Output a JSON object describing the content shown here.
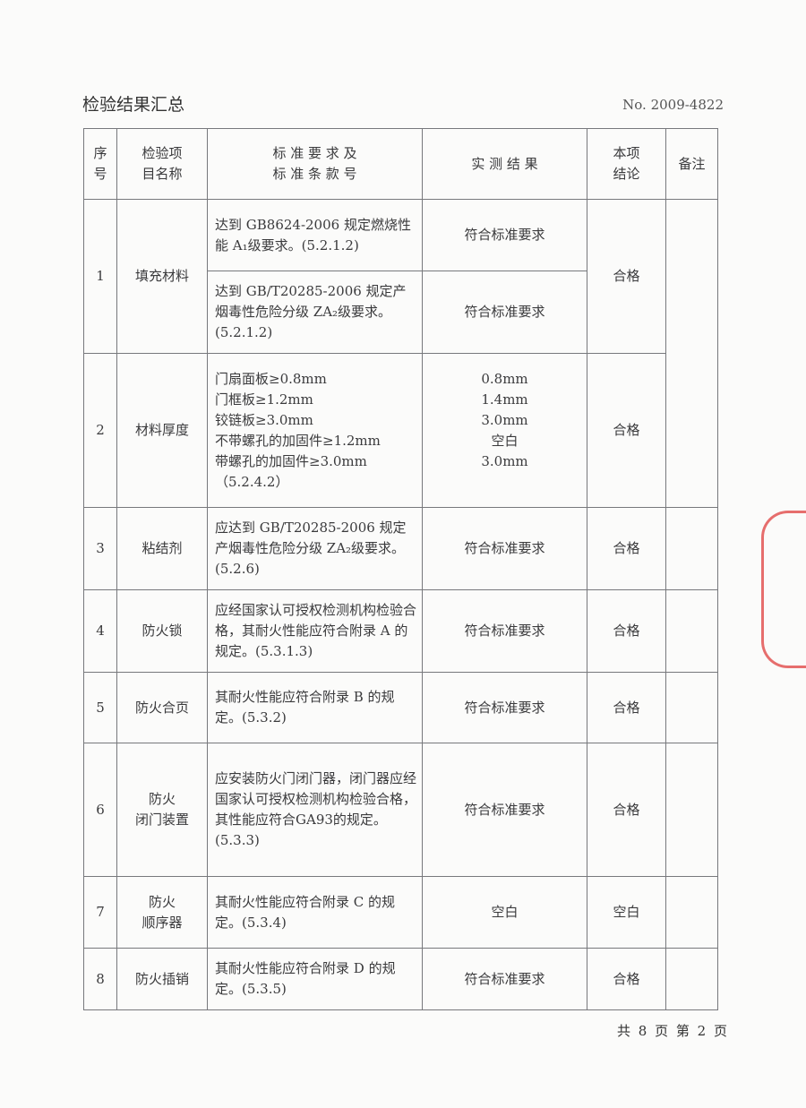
{
  "header": {
    "title": "检验结果汇总",
    "doc_no": "No. 2009-4822"
  },
  "columns": {
    "seq": [
      "序",
      "号"
    ],
    "item": [
      "检验项",
      "目名称"
    ],
    "standard": [
      "标 准 要 求 及",
      "标 准 条 款 号"
    ],
    "result": "实 测 结 果",
    "conclusion": [
      "本项",
      "结论"
    ],
    "remark": "备注"
  },
  "rows": [
    {
      "seq": "1",
      "item": "填充材料",
      "sub": [
        {
          "standard": "达到 GB8624-2006 规定燃烧性能 A₁级要求。(5.2.1.2)",
          "result": "符合标准要求"
        },
        {
          "standard": "达到 GB/T20285-2006 规定产烟毒性危险分级 ZA₂级要求。(5.2.1.2)",
          "result": "符合标准要求"
        }
      ],
      "conclusion": "合格"
    },
    {
      "seq": "2",
      "item": "材料厚度",
      "standard_lines": [
        "门扇面板≥0.8mm",
        "门框板≥1.2mm",
        "铰链板≥3.0mm",
        "不带螺孔的加固件≥1.2mm",
        "带螺孔的加固件≥3.0mm",
        "（5.2.4.2）"
      ],
      "result_lines": [
        "0.8mm",
        "1.4mm",
        "3.0mm",
        "空白",
        "3.0mm"
      ],
      "conclusion": "合格"
    },
    {
      "seq": "3",
      "item": "粘结剂",
      "standard": "应达到 GB/T20285-2006 规定产烟毒性危险分级 ZA₂级要求。(5.2.6)",
      "result": "符合标准要求",
      "conclusion": "合格"
    },
    {
      "seq": "4",
      "item": "防火锁",
      "standard": "应经国家认可授权检测机构检验合格，其耐火性能应符合附录 A 的规定。(5.3.1.3)",
      "result": "符合标准要求",
      "conclusion": "合格"
    },
    {
      "seq": "5",
      "item": "防火合页",
      "standard": "其耐火性能应符合附录 B 的规定。(5.3.2)",
      "result": "符合标准要求",
      "conclusion": "合格"
    },
    {
      "seq": "6",
      "item": [
        "防火",
        "闭门装置"
      ],
      "standard": "应安装防火门闭门器，闭门器应经国家认可授权检测机构检验合格，其性能应符合GA93的规定。(5.3.3)",
      "result": "符合标准要求",
      "conclusion": "合格"
    },
    {
      "seq": "7",
      "item": [
        "防火",
        "顺序器"
      ],
      "standard": "其耐火性能应符合附录 C 的规定。(5.3.4)",
      "result": "空白",
      "conclusion": "空白"
    },
    {
      "seq": "8",
      "item": "防火插销",
      "standard": "其耐火性能应符合附录 D 的规定。(5.3.5)",
      "result": "符合标准要求",
      "conclusion": "合格"
    }
  ],
  "footer": {
    "total": "共 8 页",
    "page": "第 2 页"
  },
  "colors": {
    "stamp": "#e0403f",
    "line": "#77787c"
  }
}
